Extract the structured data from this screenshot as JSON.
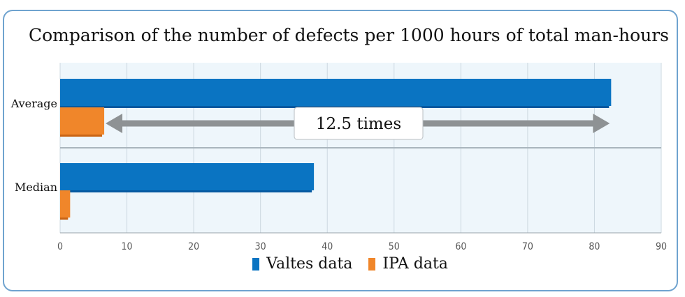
{
  "chart_data": {
    "type": "bar",
    "orientation": "horizontal",
    "title": "Comparison of the number of defects per 1000 hours of total man-hours",
    "categories": [
      "Average",
      "Median"
    ],
    "series": [
      {
        "name": "Valtes data",
        "color": "#0a74c2",
        "values": [
          82.5,
          38
        ]
      },
      {
        "name": "IPA data",
        "color": "#f0862a",
        "values": [
          6.6,
          1.5
        ]
      }
    ],
    "xlim": [
      0,
      90
    ],
    "xticks": [
      "0",
      "10",
      "20",
      "30",
      "40",
      "50",
      "60",
      "70",
      "80",
      "90"
    ],
    "grid": true,
    "legend_position": "bottom",
    "annotation": {
      "text": "12.5 times",
      "from_value": 6.6,
      "to_value": 82.5,
      "category": "Average"
    }
  }
}
